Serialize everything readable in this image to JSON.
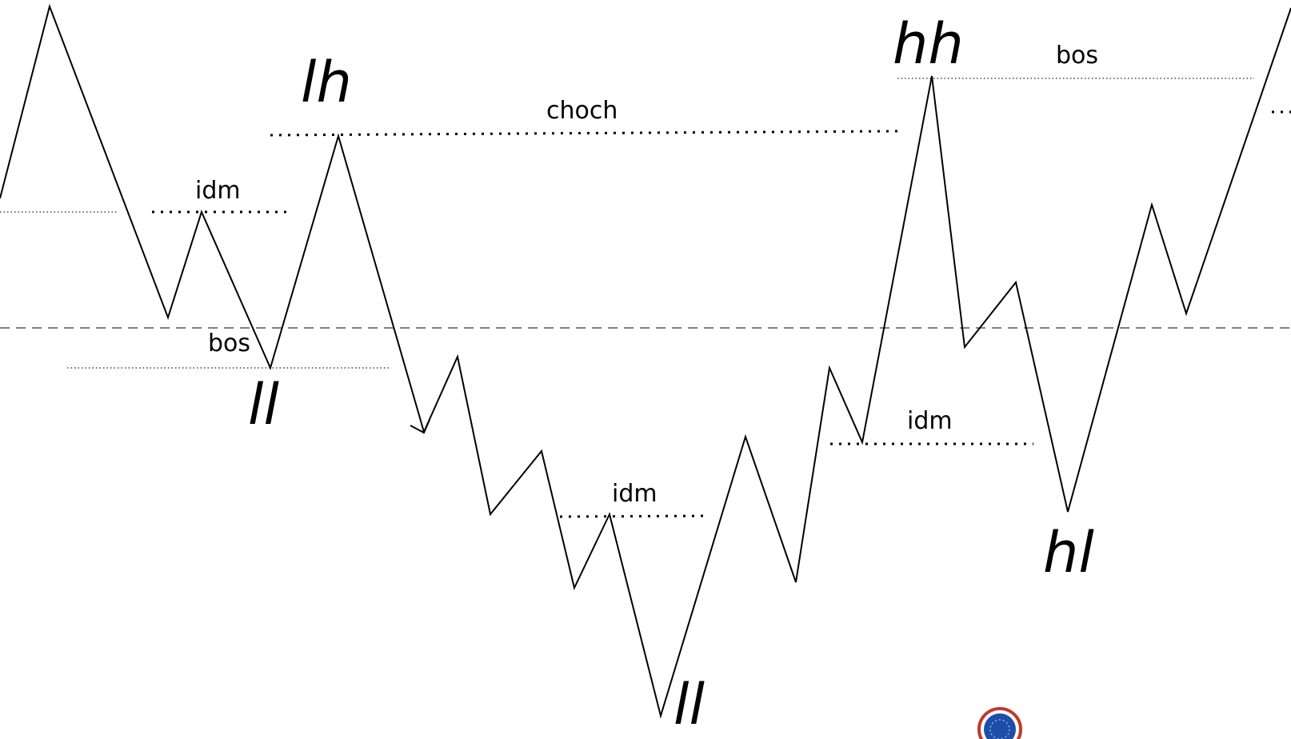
{
  "diagram": {
    "swing_labels": {
      "lh": "lh",
      "ll_1": "ll",
      "ll_2": "ll",
      "hh": "hh",
      "hl": "hl"
    },
    "level_labels": {
      "idm_1": "idm",
      "bos_1": "bos",
      "choch": "choch",
      "idm_2": "idm",
      "idm_3": "idm",
      "bos_2": "bos"
    }
  },
  "colors": {
    "line": "#000000",
    "background": "#ffffff",
    "badge_ring": "#c0392b",
    "badge_fill": "#1f4ea8"
  },
  "icons": {
    "badge": "round-badge-icon"
  }
}
